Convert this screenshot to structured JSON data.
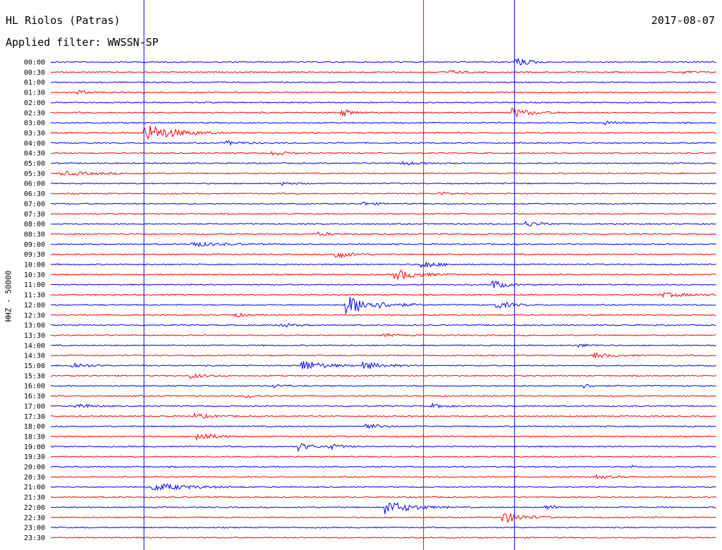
{
  "header": {
    "station": "HL Riolos (Patras)",
    "date": "2017-08-07",
    "filter": "Applied filter: WWSSN-SP"
  },
  "chart_data": {
    "type": "line",
    "title": "HL Riolos (Patras)",
    "ylabel": "HHZ - 50000",
    "row_labels": [
      "00:00",
      "00:30",
      "01:00",
      "01:30",
      "02:00",
      "02:30",
      "03:00",
      "03:30",
      "04:00",
      "04:30",
      "05:00",
      "05:30",
      "06:00",
      "06:30",
      "07:00",
      "07:30",
      "08:00",
      "08:30",
      "09:00",
      "09:30",
      "10:00",
      "10:30",
      "11:00",
      "11:30",
      "12:00",
      "12:30",
      "13:00",
      "13:30",
      "14:00",
      "14:30",
      "15:00",
      "15:30",
      "16:00",
      "16:30",
      "17:00",
      "17:30",
      "18:00",
      "18:30",
      "19:00",
      "19:30",
      "20:00",
      "20:30",
      "21:00",
      "21:30",
      "22:00",
      "22:30",
      "23:00",
      "23:30"
    ],
    "colors": {
      "even_rows": "#0000ff",
      "odd_rows": "#ff0000",
      "background": "#ffffff",
      "text": "#000000"
    },
    "x_range_minutes": [
      0,
      30
    ],
    "events": [
      {
        "row": 0,
        "minute": 20.9,
        "amp": 1.8,
        "dur": 0.5
      },
      {
        "row": 1,
        "minute": 17.9,
        "amp": 0.6,
        "dur": 0.6
      },
      {
        "row": 1,
        "minute": 28.5,
        "amp": 0.5,
        "dur": 0.4
      },
      {
        "row": 3,
        "minute": 1.2,
        "amp": 0.8,
        "dur": 0.4
      },
      {
        "row": 5,
        "minute": 13.1,
        "amp": 1.1,
        "dur": 0.5
      },
      {
        "row": 5,
        "minute": 20.8,
        "amp": 1.5,
        "dur": 0.8
      },
      {
        "row": 6,
        "minute": 25.0,
        "amp": 0.5,
        "dur": 0.5
      },
      {
        "row": 7,
        "minute": 4.2,
        "amp": 3.0,
        "dur": 1.2
      },
      {
        "row": 8,
        "minute": 7.9,
        "amp": 0.6,
        "dur": 0.8
      },
      {
        "row": 9,
        "minute": 10.0,
        "amp": 0.7,
        "dur": 0.6
      },
      {
        "row": 10,
        "minute": 15.8,
        "amp": 0.6,
        "dur": 0.7
      },
      {
        "row": 11,
        "minute": 0.5,
        "amp": 0.6,
        "dur": 1.5
      },
      {
        "row": 12,
        "minute": 10.4,
        "amp": 0.5,
        "dur": 0.5
      },
      {
        "row": 13,
        "minute": 17.5,
        "amp": 0.5,
        "dur": 0.5
      },
      {
        "row": 14,
        "minute": 14.0,
        "amp": 0.6,
        "dur": 0.5
      },
      {
        "row": 16,
        "minute": 21.4,
        "amp": 0.8,
        "dur": 0.6
      },
      {
        "row": 17,
        "minute": 12.1,
        "amp": 0.5,
        "dur": 0.6
      },
      {
        "row": 18,
        "minute": 6.3,
        "amp": 0.8,
        "dur": 1.2
      },
      {
        "row": 19,
        "minute": 12.8,
        "amp": 1.4,
        "dur": 0.6
      },
      {
        "row": 20,
        "minute": 16.7,
        "amp": 1.4,
        "dur": 0.6
      },
      {
        "row": 21,
        "minute": 15.5,
        "amp": 1.8,
        "dur": 0.9
      },
      {
        "row": 22,
        "minute": 19.9,
        "amp": 1.6,
        "dur": 0.5
      },
      {
        "row": 23,
        "minute": 27.5,
        "amp": 0.6,
        "dur": 1.5
      },
      {
        "row": 24,
        "minute": 13.3,
        "amp": 3.0,
        "dur": 1.2
      },
      {
        "row": 24,
        "minute": 20.1,
        "amp": 1.2,
        "dur": 0.6
      },
      {
        "row": 25,
        "minute": 8.3,
        "amp": 0.6,
        "dur": 0.5
      },
      {
        "row": 26,
        "minute": 10.3,
        "amp": 0.8,
        "dur": 0.5
      },
      {
        "row": 27,
        "minute": 15.0,
        "amp": 0.5,
        "dur": 0.5
      },
      {
        "row": 28,
        "minute": 23.8,
        "amp": 0.5,
        "dur": 0.5
      },
      {
        "row": 29,
        "minute": 24.5,
        "amp": 0.8,
        "dur": 0.7
      },
      {
        "row": 30,
        "minute": 1.0,
        "amp": 1.0,
        "dur": 0.6
      },
      {
        "row": 30,
        "minute": 11.3,
        "amp": 2.0,
        "dur": 0.8
      },
      {
        "row": 30,
        "minute": 14.1,
        "amp": 1.2,
        "dur": 0.8
      },
      {
        "row": 31,
        "minute": 6.3,
        "amp": 0.8,
        "dur": 0.6
      },
      {
        "row": 32,
        "minute": 10.0,
        "amp": 0.6,
        "dur": 0.5
      },
      {
        "row": 32,
        "minute": 24.0,
        "amp": 0.6,
        "dur": 0.4
      },
      {
        "row": 33,
        "minute": 8.8,
        "amp": 0.6,
        "dur": 0.5
      },
      {
        "row": 34,
        "minute": 1.1,
        "amp": 1.0,
        "dur": 0.6
      },
      {
        "row": 34,
        "minute": 17.2,
        "amp": 0.6,
        "dur": 0.5
      },
      {
        "row": 35,
        "minute": 6.5,
        "amp": 0.8,
        "dur": 0.7
      },
      {
        "row": 36,
        "minute": 14.2,
        "amp": 1.0,
        "dur": 0.5
      },
      {
        "row": 37,
        "minute": 6.6,
        "amp": 1.4,
        "dur": 0.7
      },
      {
        "row": 38,
        "minute": 11.2,
        "amp": 1.2,
        "dur": 0.5
      },
      {
        "row": 38,
        "minute": 12.5,
        "amp": 1.0,
        "dur": 0.5
      },
      {
        "row": 40,
        "minute": 26.2,
        "amp": 0.4,
        "dur": 0.4
      },
      {
        "row": 41,
        "minute": 24.6,
        "amp": 0.5,
        "dur": 0.7
      },
      {
        "row": 42,
        "minute": 4.6,
        "amp": 1.2,
        "dur": 1.5
      },
      {
        "row": 44,
        "minute": 15.1,
        "amp": 2.2,
        "dur": 1.0
      },
      {
        "row": 44,
        "minute": 22.3,
        "amp": 0.8,
        "dur": 0.5
      },
      {
        "row": 45,
        "minute": 20.4,
        "amp": 1.8,
        "dur": 0.8
      }
    ],
    "markers": [
      {
        "minute": 4.2,
        "color": "#0000ff"
      },
      {
        "minute": 16.8,
        "color": "#ff0000"
      },
      {
        "minute": 20.9,
        "color": "#0000ff"
      }
    ]
  }
}
